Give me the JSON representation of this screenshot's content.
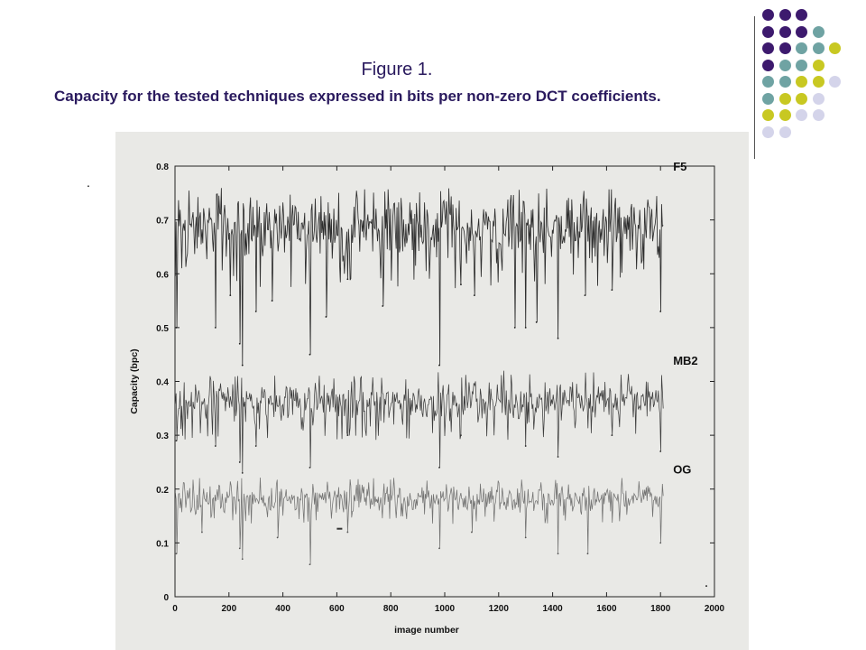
{
  "slide": {
    "title": "Figure 1.",
    "subtitle": "Capacity for the tested techniques expressed in bits per non-zero DCT coefficients.",
    "bullet": "."
  },
  "decoration": {
    "dot_rows": [
      [
        "purple",
        "purple",
        "purple"
      ],
      [
        "purple",
        "purple",
        "purple",
        "teal"
      ],
      [
        "purple",
        "purple",
        "teal",
        "teal",
        "yellow"
      ],
      [
        "purple",
        "teal",
        "teal",
        "yellow"
      ],
      [
        "teal",
        "teal",
        "yellow",
        "yellow",
        "lavender"
      ],
      [
        "teal",
        "yellow",
        "yellow",
        "lavender"
      ],
      [
        "yellow",
        "yellow",
        "lavender",
        "lavender"
      ],
      [
        "lavender",
        "lavender"
      ]
    ],
    "colors": {
      "purple": "#3d1a6e",
      "teal": "#6fa3a3",
      "yellow": "#c8c822",
      "lavender": "#d4d4ea"
    }
  },
  "chart_data": {
    "type": "line",
    "title": "",
    "xlabel": "image number",
    "ylabel": "Capacity (bpc)",
    "xlim": [
      0,
      2000
    ],
    "ylim": [
      0,
      0.8
    ],
    "x_ticks": [
      "0",
      "200",
      "400",
      "600",
      "800",
      "1000",
      "1200",
      "1400",
      "1600",
      "1800",
      "2000"
    ],
    "y_ticks": [
      "0",
      "0.1",
      "0.2",
      "0.3",
      "0.4",
      "0.5",
      "0.6",
      "0.7",
      "0.8"
    ],
    "grid": false,
    "legend": "inline-right",
    "series": [
      {
        "name": "F5",
        "color": "#1a1a1a",
        "x_range": [
          1,
          1810
        ],
        "mean": 0.685,
        "spread": 0.028,
        "peak": 0.76,
        "dips": [
          {
            "x": 5,
            "y": 0.5
          },
          {
            "x": 150,
            "y": 0.5
          },
          {
            "x": 205,
            "y": 0.56
          },
          {
            "x": 240,
            "y": 0.47
          },
          {
            "x": 250,
            "y": 0.43
          },
          {
            "x": 300,
            "y": 0.53
          },
          {
            "x": 360,
            "y": 0.55
          },
          {
            "x": 500,
            "y": 0.45
          },
          {
            "x": 560,
            "y": 0.52
          },
          {
            "x": 640,
            "y": 0.59
          },
          {
            "x": 770,
            "y": 0.54
          },
          {
            "x": 980,
            "y": 0.43
          },
          {
            "x": 1060,
            "y": 0.58
          },
          {
            "x": 1110,
            "y": 0.56
          },
          {
            "x": 1260,
            "y": 0.5
          },
          {
            "x": 1300,
            "y": 0.5
          },
          {
            "x": 1340,
            "y": 0.51
          },
          {
            "x": 1420,
            "y": 0.48
          },
          {
            "x": 1520,
            "y": 0.56
          },
          {
            "x": 1620,
            "y": 0.57
          },
          {
            "x": 1800,
            "y": 0.53
          }
        ]
      },
      {
        "name": "MB2",
        "color": "#2b2b2b",
        "x_range": [
          1,
          1810
        ],
        "mean": 0.363,
        "spread": 0.018,
        "peak": 0.42,
        "dips": [
          {
            "x": 5,
            "y": 0.29
          },
          {
            "x": 150,
            "y": 0.28
          },
          {
            "x": 240,
            "y": 0.25
          },
          {
            "x": 250,
            "y": 0.23
          },
          {
            "x": 300,
            "y": 0.28
          },
          {
            "x": 500,
            "y": 0.24
          },
          {
            "x": 640,
            "y": 0.3
          },
          {
            "x": 980,
            "y": 0.24
          },
          {
            "x": 1060,
            "y": 0.3
          },
          {
            "x": 1300,
            "y": 0.28
          },
          {
            "x": 1420,
            "y": 0.26
          },
          {
            "x": 1620,
            "y": 0.3
          },
          {
            "x": 1800,
            "y": 0.27
          }
        ]
      },
      {
        "name": "OG",
        "color": "#555555",
        "x_range": [
          1,
          1810
        ],
        "mean": 0.183,
        "spread": 0.012,
        "peak": 0.23,
        "dips": [
          {
            "x": 5,
            "y": 0.08
          },
          {
            "x": 100,
            "y": 0.12
          },
          {
            "x": 240,
            "y": 0.09
          },
          {
            "x": 250,
            "y": 0.07
          },
          {
            "x": 380,
            "y": 0.11
          },
          {
            "x": 500,
            "y": 0.06
          },
          {
            "x": 640,
            "y": 0.12
          },
          {
            "x": 980,
            "y": 0.09
          },
          {
            "x": 1100,
            "y": 0.12
          },
          {
            "x": 1300,
            "y": 0.11
          },
          {
            "x": 1420,
            "y": 0.08
          },
          {
            "x": 1530,
            "y": 0.08
          },
          {
            "x": 1800,
            "y": 0.1
          }
        ]
      }
    ]
  }
}
